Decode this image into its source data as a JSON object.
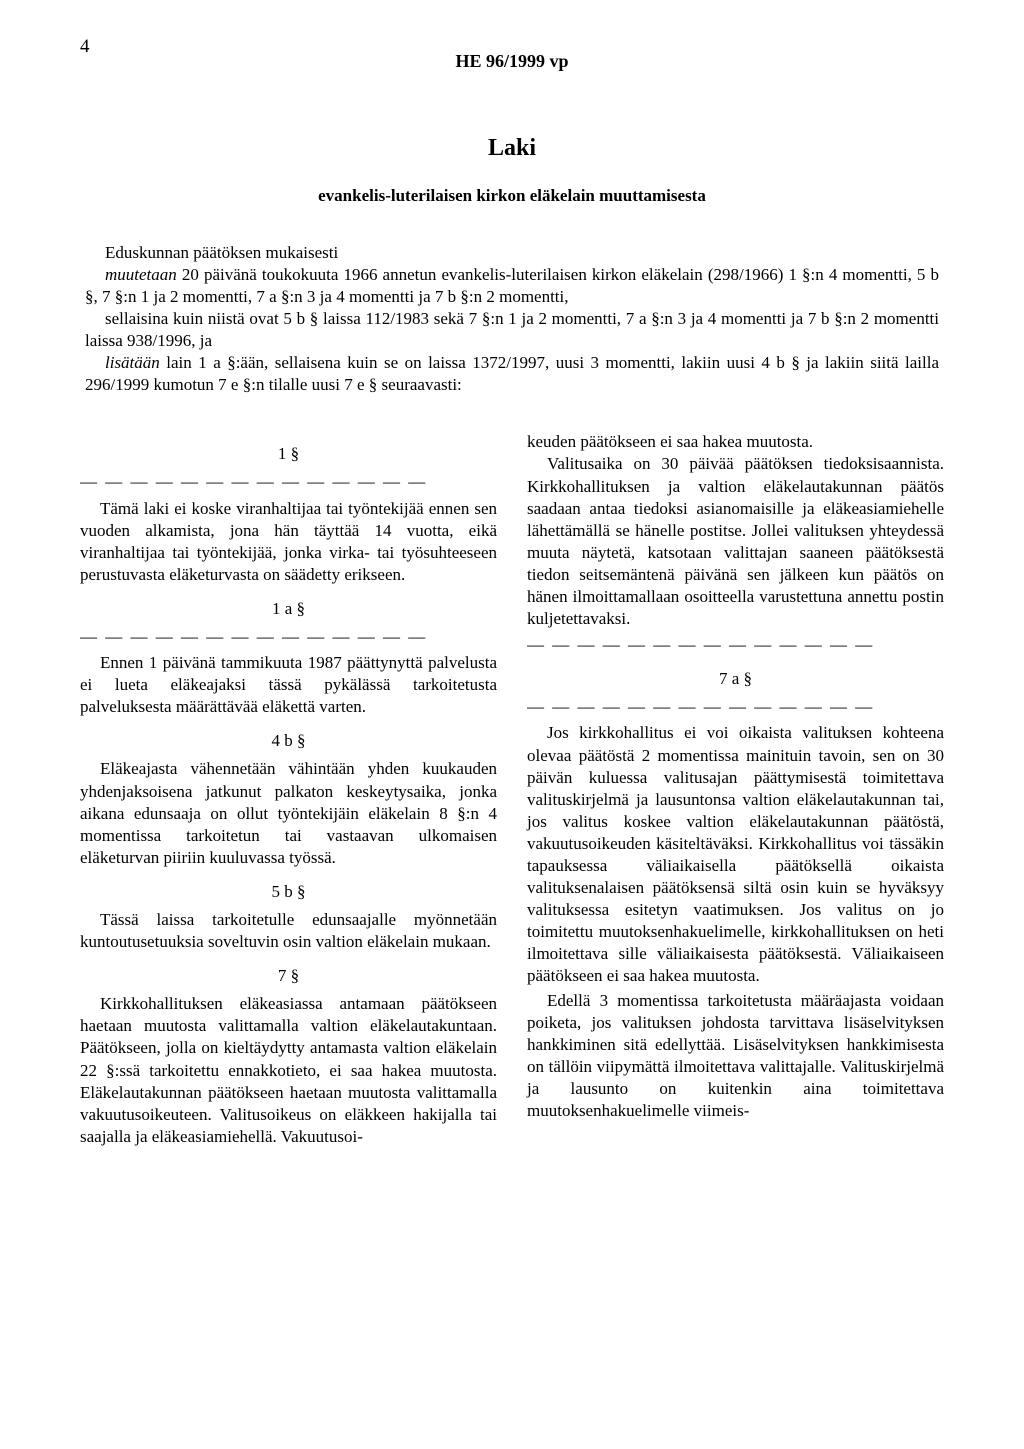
{
  "page_number": "4",
  "doc_reference": "HE 96/1999 vp",
  "law_title": "Laki",
  "law_subtitle": "evankelis-luterilaisen kirkon eläkelain muuttamisesta",
  "preamble": {
    "line1": "Eduskunnan päätöksen mukaisesti",
    "muutetaan_word": "muutetaan",
    "line2_rest": " 20 päivänä toukokuuta 1966 annetun evankelis-luterilaisen kirkon eläkelain (298/1966) 1 §:n 4 momentti, 5 b §, 7 §:n 1 ja 2 momentti, 7 a §:n 3 ja 4 momentti ja 7 b §:n 2 momentti,",
    "line3": "sellaisina kuin niistä ovat 5 b § laissa 112/1983 sekä 7 §:n 1 ja 2 momentti, 7 a §:n 3 ja 4 momentti ja 7 b §:n 2 momentti laissa 938/1996, ja",
    "lisataan_word": "lisätään",
    "line4_rest": " lain 1 a §:ään, sellaisena kuin se on laissa 1372/1997, uusi 3 momentti, lakiin uusi 4 b § ja lakiin siitä lailla 296/1999 kumotun 7 e §:n tilalle uusi 7 e § seuraavasti:"
  },
  "dashes": "— — — — — — — — — — — — — — ",
  "left_col": {
    "s1_num": "1 §",
    "s1_p1": "Tämä laki ei koske viranhaltijaa tai työntekijää ennen sen vuoden alkamista, jona hän täyttää 14 vuotta, eikä viranhaltijaa tai työntekijää, jonka virka- tai työsuhteeseen perustuvasta eläketurvasta on säädetty erikseen.",
    "s1a_num": "1 a §",
    "s1a_p1": "Ennen 1 päivänä tammikuuta 1987 päättynyttä palvelusta ei lueta eläkeajaksi tässä pykälässä tarkoitetusta palveluksesta määrättävää eläkettä varten.",
    "s4b_num": "4 b §",
    "s4b_p1": "Eläkeajasta vähennetään vähintään yhden kuukauden yhdenjaksoisena jatkunut palkaton keskeytysaika, jonka aikana edunsaaja on ollut työntekijäin eläkelain 8 §:n 4 momentissa tarkoitetun tai vastaavan ulkomaisen eläketurvan piiriin kuuluvassa työssä.",
    "s5b_num": "5 b §",
    "s5b_p1": "Tässä laissa tarkoitetulle edunsaajalle myönnetään kuntoutusetuuksia soveltuvin osin valtion eläkelain mukaan.",
    "s7_num": "7 §",
    "s7_p1": "Kirkkohallituksen eläkeasiassa antamaan päätökseen haetaan muutosta valittamalla valtion eläkelautakuntaan. Päätökseen, jolla on kieltäydytty antamasta valtion eläkelain 22 §:ssä tarkoitettu ennakkotieto, ei saa hakea muutosta. Eläkelautakunnan päätökseen haetaan muutosta valittamalla vakuutusoikeuteen. Valitusoikeus on eläkkeen hakijalla tai saajalla ja eläkeasiamiehellä. Vakuutusoi-"
  },
  "right_col": {
    "r1_p1": "keuden päätökseen ei saa hakea muutosta.",
    "r1_p2": "Valitusaika on 30 päivää päätöksen tiedoksisaannista. Kirkkohallituksen ja valtion eläkelautakunnan päätös saadaan antaa tiedoksi asianomaisille ja eläkeasiamiehelle lähettämällä se hänelle postitse. Jollei valituksen yhteydessä muuta näytetä, katsotaan valittajan saaneen päätöksestä tiedon seitsemäntenä päivänä sen jälkeen kun päätös on hänen ilmoittamallaan osoitteella varustettuna annettu postin kuljetettavaksi.",
    "s7a_num": "7 a §",
    "s7a_p1": "Jos kirkkohallitus ei voi oikaista valituksen kohteena olevaa päätöstä 2 momentissa mainituin tavoin, sen on 30 päivän kuluessa valitusajan päättymisestä toimitettava valituskirjelmä ja lausuntonsa valtion eläkelautakunnan tai, jos valitus koskee valtion eläkelautakunnan päätöstä, vakuutusoikeuden käsiteltäväksi. Kirkkohallitus voi tässäkin tapauksessa väliaikaisella päätöksellä oikaista valituksenalaisen päätöksensä siltä osin kuin se hyväksyy valituksessa esitetyn vaatimuksen. Jos valitus on jo toimitettu muutoksenhakuelimelle, kirkkohallituksen on heti ilmoitettava sille väliaikaisesta päätöksestä. Väliaikaiseen päätökseen ei saa hakea muutosta.",
    "s7a_p2": "Edellä 3 momentissa tarkoitetusta määräajasta voidaan poiketa, jos valituksen johdosta tarvittava lisäselvityksen hankkiminen sitä edellyttää. Lisäselvityksen hankkimisesta on tällöin viipymättä ilmoitettava valittajalle. Valituskirjelmä ja lausunto on kuitenkin aina toimitettava muutoksenhakuelimelle viimeis-"
  }
}
